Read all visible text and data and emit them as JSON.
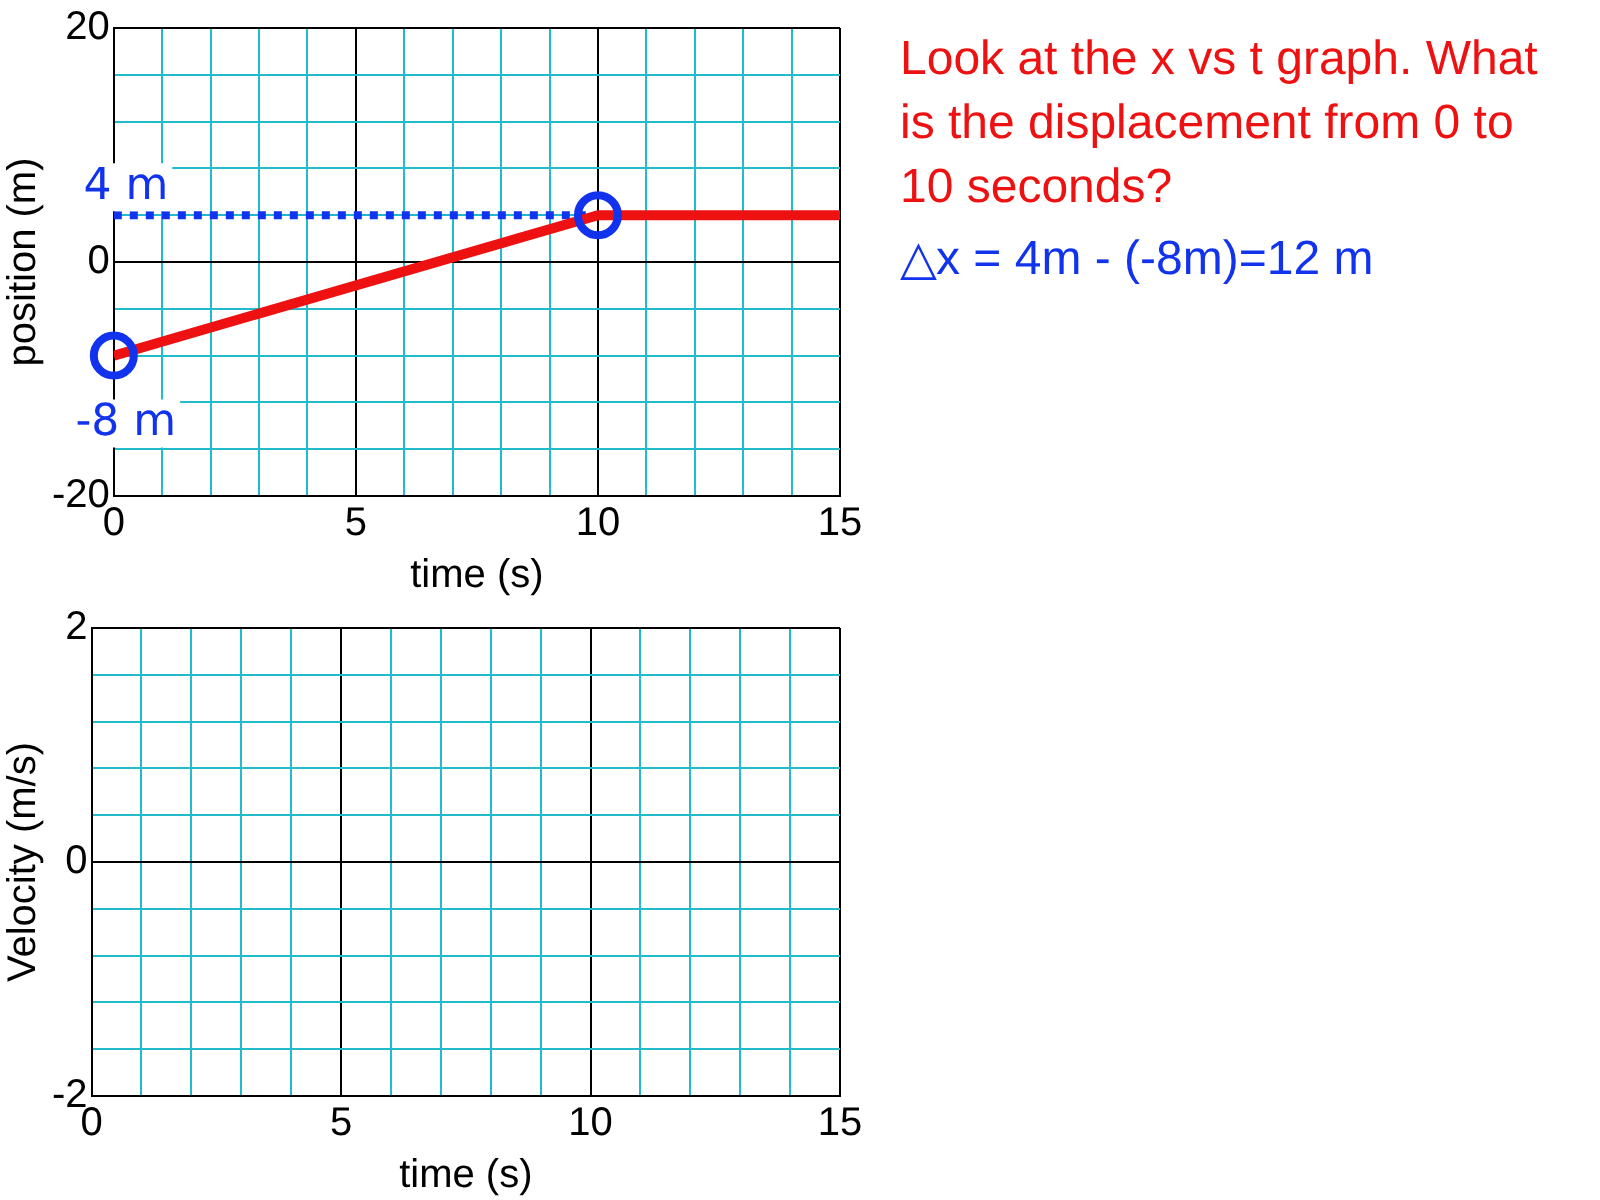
{
  "chart_data": [
    {
      "type": "line",
      "xlabel": "time (s)",
      "ylabel": "position (m)",
      "xlim": [
        0,
        15
      ],
      "ylim": [
        -20,
        20
      ],
      "xticks": [
        0,
        {
          "value": 1,
          "label": null
        },
        {
          "value": 2,
          "label": null
        },
        {
          "value": 3,
          "label": null
        },
        {
          "value": 4,
          "label": null
        },
        5,
        {
          "value": 6,
          "label": null
        },
        {
          "value": 7,
          "label": null
        },
        {
          "value": 8,
          "label": null
        },
        {
          "value": 9,
          "label": null
        },
        10,
        {
          "value": 11,
          "label": null
        },
        {
          "value": 12,
          "label": null
        },
        {
          "value": 13,
          "label": null
        },
        {
          "value": 14,
          "label": null
        },
        15
      ],
      "yticks": [
        -20,
        {
          "value": -16,
          "label": null
        },
        {
          "value": -12,
          "label": null
        },
        {
          "value": -8,
          "label": null
        },
        {
          "value": -4,
          "label": null
        },
        0,
        {
          "value": 4,
          "label": null
        },
        {
          "value": 8,
          "label": null
        },
        {
          "value": 12,
          "label": null
        },
        {
          "value": 16,
          "label": null
        },
        20
      ],
      "grid": true,
      "series": [
        {
          "type": "line",
          "color": "#ee1111",
          "x": [
            0,
            10,
            15
          ],
          "values": [
            -8,
            4,
            4
          ],
          "marker": "none",
          "line_style": "solid"
        },
        {
          "type": "line",
          "color": "#1133ee",
          "x": [
            0,
            10
          ],
          "values": [
            4,
            4
          ],
          "marker": "none",
          "line_style": "dotted"
        },
        {
          "type": "scatter",
          "color": "#1133ee",
          "x": [
            0,
            10
          ],
          "values": [
            -8,
            4
          ],
          "marker": "circle"
        }
      ],
      "annotations": [
        {
          "text": "4 m",
          "x": 0,
          "y": 4
        },
        {
          "text": "-8 m",
          "x": 0,
          "y": -8
        },
        "Look at the x vs t graph. What is the displacement from 0 to 10 seconds?",
        "△x = 4m - (-8m)=12 m"
      ]
    },
    {
      "type": "line",
      "xlabel": "time (s)",
      "ylabel": "Velocity (m/s)",
      "xlim": [
        0,
        15
      ],
      "ylim": [
        -2,
        2
      ],
      "xticks": [
        0,
        {
          "value": 1,
          "label": null
        },
        {
          "value": 2,
          "label": null
        },
        {
          "value": 3,
          "label": null
        },
        {
          "value": 4,
          "label": null
        },
        5,
        {
          "value": 6,
          "label": null
        },
        {
          "value": 7,
          "label": null
        },
        {
          "value": 8,
          "label": null
        },
        {
          "value": 9,
          "label": null
        },
        10,
        {
          "value": 11,
          "label": null
        },
        {
          "value": 12,
          "label": null
        },
        {
          "value": 13,
          "label": null
        },
        {
          "value": 14,
          "label": null
        },
        15
      ],
      "yticks": [
        -2,
        {
          "value": -1.6,
          "label": null
        },
        {
          "value": -1.2,
          "label": null
        },
        {
          "value": -0.8,
          "label": null
        },
        {
          "value": -0.4,
          "label": null
        },
        0,
        {
          "value": 0.4,
          "label": null
        },
        {
          "value": 0.8,
          "label": null
        },
        {
          "value": 1.2,
          "label": null
        },
        {
          "value": 1.6,
          "label": null
        },
        2
      ],
      "grid": true
    }
  ]
}
